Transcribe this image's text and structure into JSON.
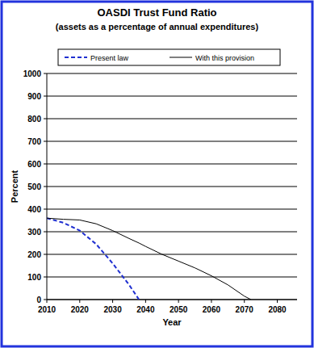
{
  "chart_data": {
    "type": "line",
    "title": "OASDI Trust Fund Ratio",
    "subtitle": "(assets as a percentage of annual expenditures)",
    "x_label": "Year",
    "y_label": "Percent",
    "x": [
      2010,
      2015,
      2020,
      2025,
      2030,
      2035,
      2038,
      2040,
      2045,
      2050,
      2055,
      2060,
      2065,
      2070,
      2072
    ],
    "series": [
      {
        "name": "Present law",
        "color": "#1f2fd0",
        "line_style": "dashed",
        "values": [
          360,
          340,
          305,
          245,
          160,
          65,
          0,
          null,
          null,
          null,
          null,
          null,
          null,
          null,
          null
        ]
      },
      {
        "name": "With this provision",
        "color": "#000000",
        "line_style": "solid",
        "values": [
          360,
          355,
          352,
          335,
          305,
          270,
          250,
          235,
          200,
          170,
          140,
          105,
          65,
          15,
          0
        ]
      }
    ],
    "xlim": [
      2010,
      2086
    ],
    "xticks": [
      2010,
      2020,
      2030,
      2040,
      2050,
      2060,
      2070,
      2080
    ],
    "ylim": [
      0,
      1000
    ],
    "yticks": [
      0,
      100,
      200,
      300,
      400,
      500,
      600,
      700,
      800,
      900,
      1000
    ],
    "grid": true,
    "legend": "top"
  }
}
